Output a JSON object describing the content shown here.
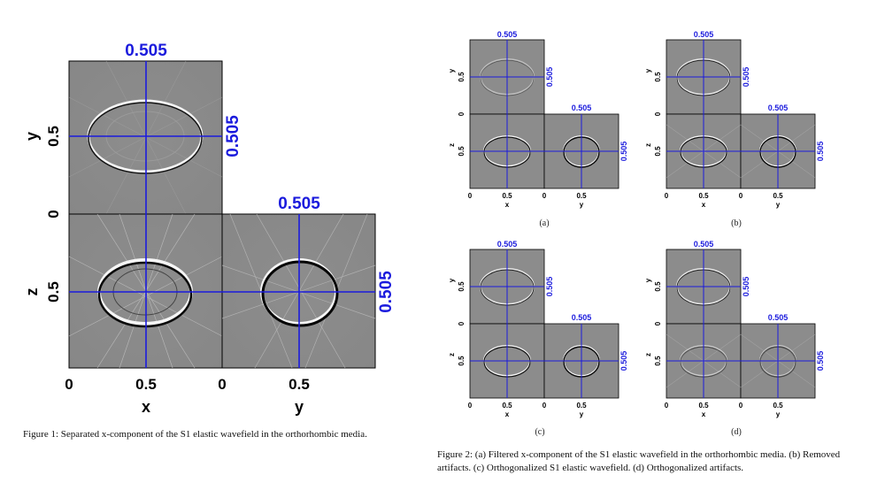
{
  "figure1": {
    "top_marker": "0.505",
    "right_marker": "0.505",
    "side_top_marker": "0.505",
    "side_right_marker": "0.505",
    "y_axis_label": "y",
    "z_axis_label": "z",
    "x_axis_label": "x",
    "y2_axis_label": "y",
    "y_tick": "0.5",
    "zero_tick": "0",
    "z_tick": "0.5",
    "x_ticks": [
      "0",
      "0.5",
      "0",
      "0.5"
    ],
    "caption": "Figure 1: Separated x-component of the S1 elastic wavefield in the orthorhombic media."
  },
  "figure2": {
    "panels": [
      {
        "sub_label": "(a)"
      },
      {
        "sub_label": "(b)"
      },
      {
        "sub_label": "(c)"
      },
      {
        "sub_label": "(d)"
      }
    ],
    "marker": "0.505",
    "ticks": [
      "0",
      "0.5",
      "0",
      "0.5"
    ],
    "x_label": "x",
    "y_label": "y",
    "z_label": "z",
    "zero": "0",
    "half": "0.5",
    "caption": "Figure 2: (a) Filtered x-component of the S1 elastic wavefield in the orthorhombic media. (b) Removed artifacts. (c) Orthogonalized S1 elastic wavefield. (d) Orthogonalized artifacts."
  },
  "colors": {
    "marker_blue": "#1b1bdd",
    "panel_gray": "#8a8a8a"
  }
}
